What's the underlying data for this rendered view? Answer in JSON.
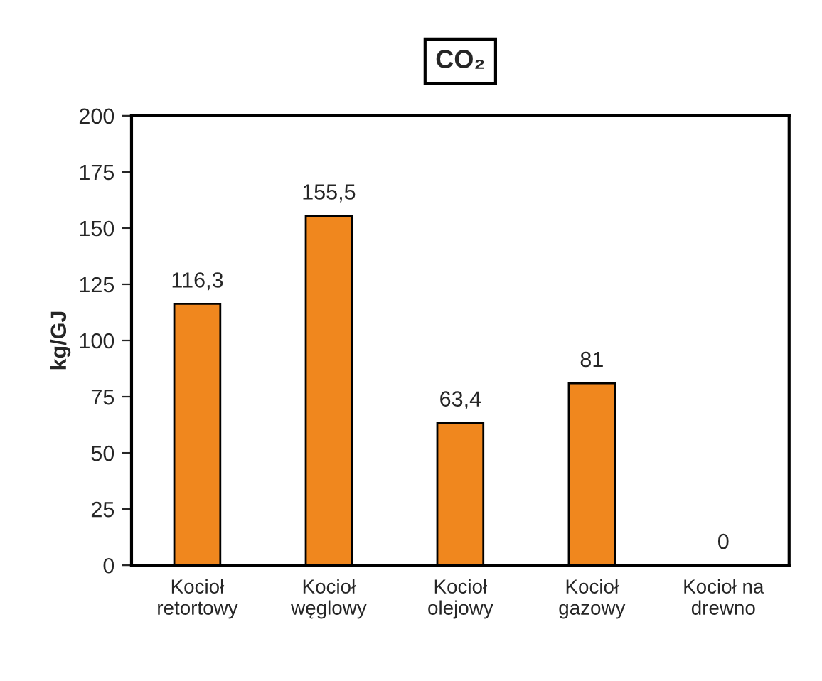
{
  "chart_data": {
    "type": "bar",
    "title": "CO₂",
    "ylabel": "kg/GJ",
    "categories": [
      "Kocioł\nretortowy",
      "Kocioł\nwęglowy",
      "Kocioł\nolejowy",
      "Kocioł\ngazowy",
      "Kocioł na\ndrewno"
    ],
    "values": [
      116.3,
      155.5,
      63.4,
      81,
      0
    ],
    "value_labels": [
      "116,3",
      "155,5",
      "63,4",
      "81",
      "0"
    ],
    "color": "#f0871e",
    "ylim": [
      0,
      200
    ],
    "yticks": [
      0,
      25,
      50,
      75,
      100,
      125,
      150,
      175,
      200
    ],
    "grid": false,
    "legend": false
  }
}
